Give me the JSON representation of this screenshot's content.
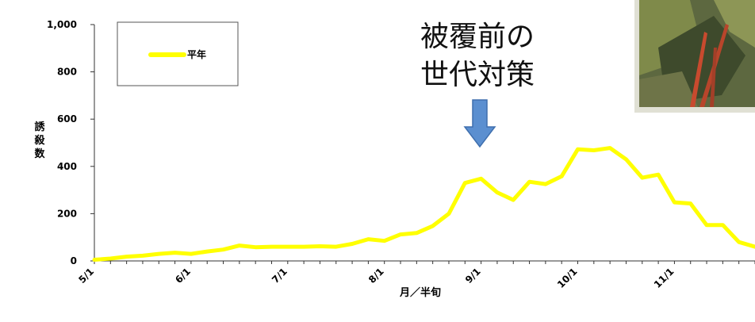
{
  "chart_data": {
    "type": "line",
    "title": "",
    "xlabel": "月／半旬",
    "ylabel": "誘殺数",
    "ylim": [
      0,
      1000
    ],
    "yticks": [
      0,
      200,
      400,
      600,
      800,
      1000
    ],
    "ytick_labels": [
      "0",
      "200",
      "400",
      "600",
      "800",
      "1,000"
    ],
    "x_tick_labels": [
      "5/1",
      "6/1",
      "7/1",
      "8/1",
      "9/1",
      "10/1",
      "11/1"
    ],
    "x_tick_index": [
      0,
      6,
      12,
      18,
      24,
      30,
      36
    ],
    "grid": false,
    "legend_position": "top-left",
    "series": [
      {
        "name": "平年",
        "color": "#ffff00",
        "values": [
          5,
          10,
          18,
          22,
          30,
          35,
          30,
          40,
          48,
          65,
          58,
          60,
          60,
          60,
          62,
          60,
          72,
          92,
          85,
          112,
          118,
          148,
          200,
          330,
          348,
          290,
          258,
          335,
          325,
          358,
          472,
          468,
          478,
          430,
          352,
          365,
          248,
          243,
          152,
          152,
          80,
          60
        ]
      }
    ],
    "annotation": {
      "lines": [
        "被覆前の",
        "世代対策"
      ],
      "arrow_color": "#5b8fd0",
      "arrow_stroke": "#3f6fae"
    }
  }
}
